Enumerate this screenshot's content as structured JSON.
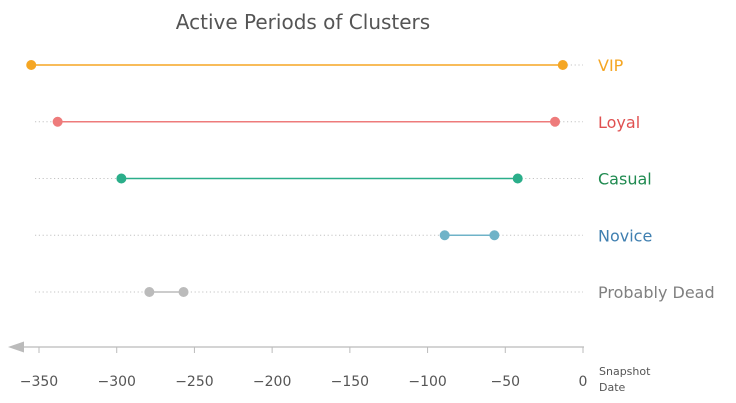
{
  "chart_data": {
    "type": "dumbbell",
    "title": "Active Periods of Clusters",
    "x_annotation": [
      "Snapshot",
      "Date"
    ],
    "xlim": [
      -362,
      2
    ],
    "xticks": [
      -350,
      -300,
      -250,
      -200,
      -150,
      -100,
      -50,
      0
    ],
    "xtick_labels": [
      "−350",
      "−300",
      "−250",
      "−200",
      "−150",
      "−100",
      "−50",
      "0"
    ],
    "grid": "dotted horizontal guide per row",
    "series": [
      {
        "name": "VIP",
        "start": -355,
        "end": -13,
        "color": "#F5A623",
        "label_color": "#F5A623"
      },
      {
        "name": "Loyal",
        "start": -338,
        "end": -18,
        "color": "#EE7B7B",
        "label_color": "#E05050"
      },
      {
        "name": "Casual",
        "start": -297,
        "end": -42,
        "color": "#2BAE8A",
        "label_color": "#1F8A50"
      },
      {
        "name": "Novice",
        "start": -89,
        "end": -57,
        "color": "#6FB3C8",
        "label_color": "#3F7FB0"
      },
      {
        "name": "Probably Dead",
        "start": -279,
        "end": -257,
        "color": "#BBBBBB",
        "label_color": "#808080"
      }
    ]
  }
}
